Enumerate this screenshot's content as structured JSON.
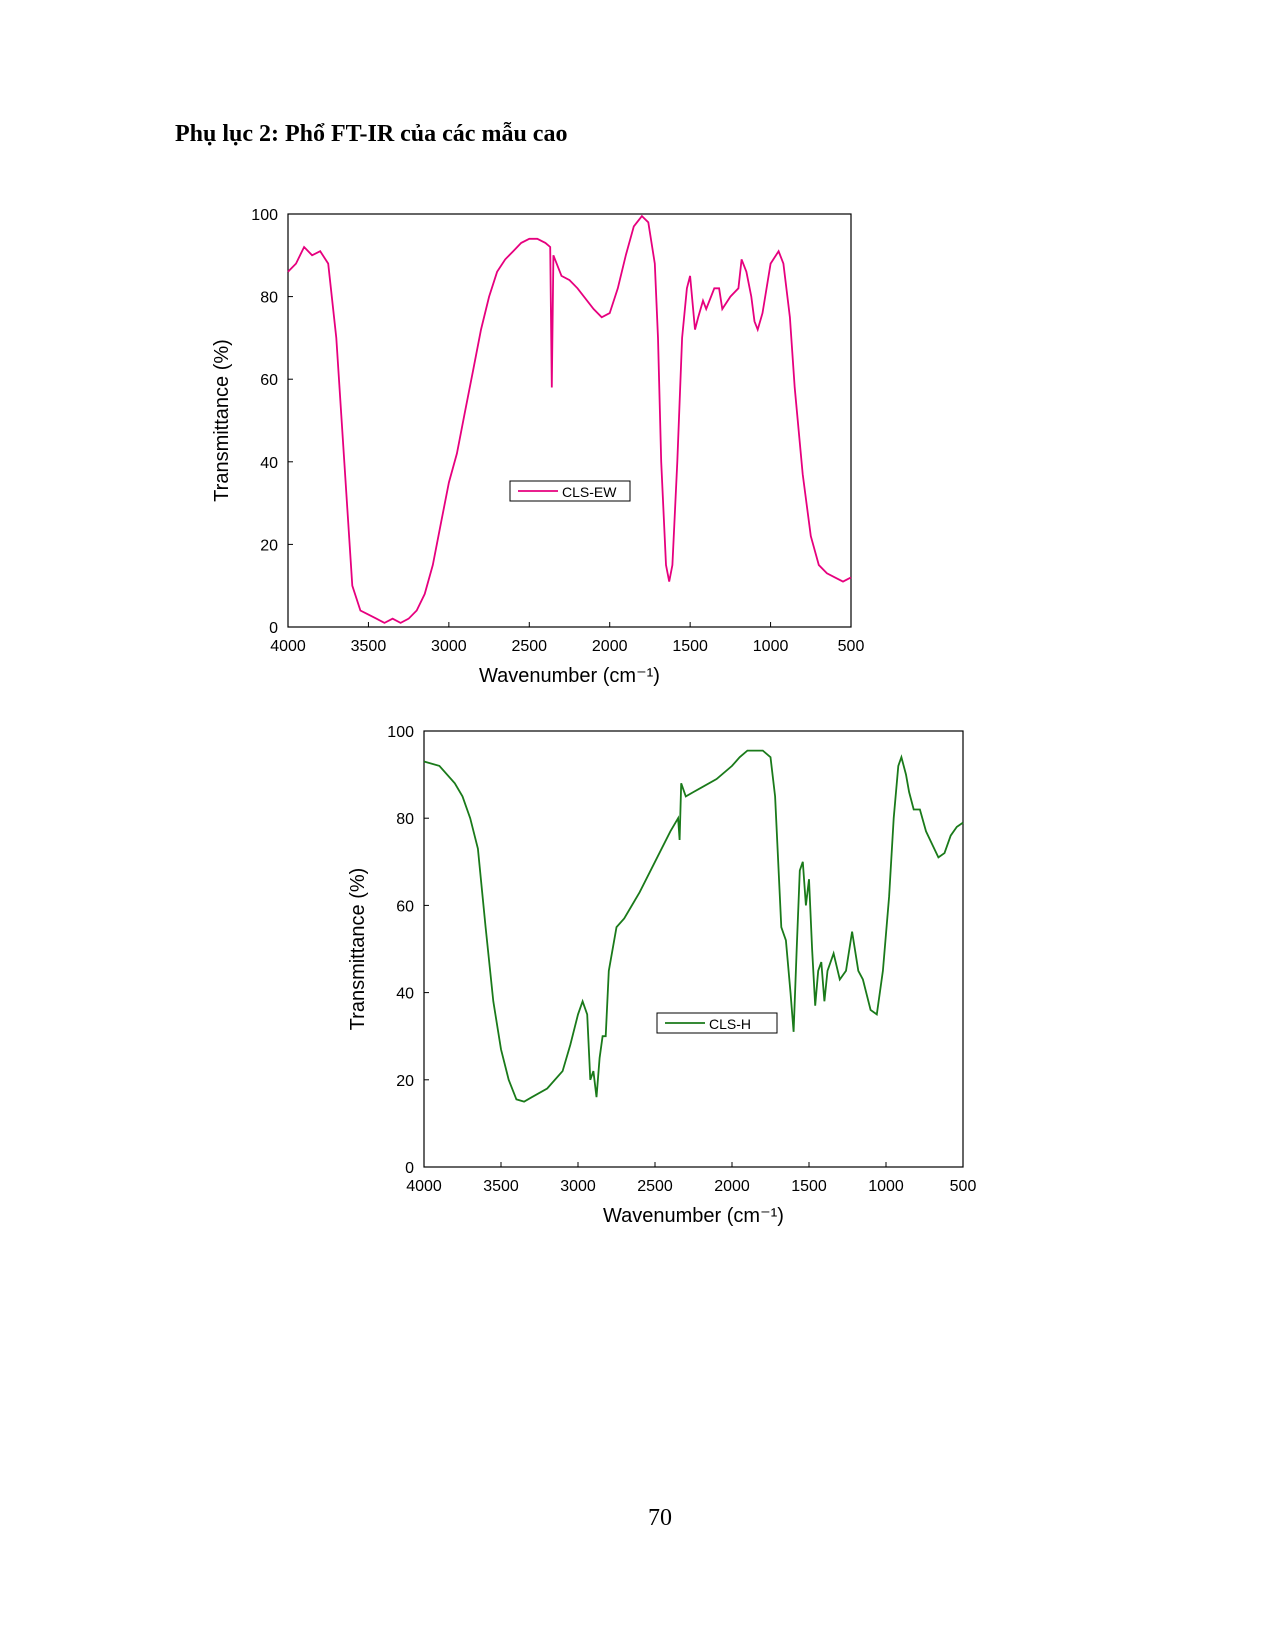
{
  "heading": "Phụ lục 2: Phổ FT-IR của các mẫu cao",
  "page_number": "70",
  "chart_data": [
    {
      "type": "line",
      "xlabel": "Wavenumber (cm⁻¹)",
      "ylabel": "Transmittance (%)",
      "xlim": [
        4000,
        500
      ],
      "ylim": [
        0,
        100
      ],
      "xticks": [
        4000,
        3500,
        3000,
        2500,
        2000,
        1500,
        1000,
        500
      ],
      "yticks": [
        0,
        20,
        40,
        60,
        80,
        100
      ],
      "x": [
        4000,
        3950,
        3900,
        3850,
        3800,
        3750,
        3700,
        3650,
        3600,
        3550,
        3500,
        3450,
        3400,
        3350,
        3300,
        3250,
        3200,
        3150,
        3100,
        3050,
        3000,
        2950,
        2900,
        2850,
        2800,
        2750,
        2700,
        2650,
        2600,
        2550,
        2500,
        2450,
        2400,
        2370,
        2360,
        2350,
        2300,
        2250,
        2200,
        2100,
        2050,
        2000,
        1950,
        1900,
        1850,
        1800,
        1760,
        1720,
        1700,
        1680,
        1650,
        1630,
        1610,
        1580,
        1550,
        1520,
        1500,
        1470,
        1450,
        1420,
        1400,
        1350,
        1320,
        1300,
        1250,
        1200,
        1180,
        1150,
        1120,
        1100,
        1080,
        1050,
        1000,
        950,
        920,
        880,
        850,
        800,
        750,
        700,
        650,
        600,
        550,
        500
      ],
      "series": [
        {
          "name": "CLS-EW",
          "color": "#e6007e",
          "values": [
            86,
            88,
            92,
            90,
            91,
            88,
            70,
            40,
            10,
            4,
            3,
            2,
            1,
            2,
            1,
            2,
            4,
            8,
            15,
            25,
            35,
            42,
            52,
            62,
            72,
            80,
            86,
            89,
            91,
            93,
            94,
            94,
            93,
            92,
            58,
            90,
            85,
            84,
            82,
            77,
            75,
            76,
            82,
            90,
            97,
            99.5,
            98,
            88,
            70,
            40,
            15,
            11,
            15,
            40,
            70,
            82,
            85,
            72,
            75,
            79,
            77,
            82,
            82,
            77,
            80,
            82,
            89,
            86,
            80,
            74,
            72,
            76,
            88,
            91,
            88,
            75,
            58,
            37,
            22,
            15,
            13,
            12,
            11,
            12
          ]
        }
      ]
    },
    {
      "type": "line",
      "xlabel": "Wavenumber (cm⁻¹)",
      "ylabel": "Transmittance (%)",
      "xlim": [
        4000,
        500
      ],
      "ylim": [
        0,
        100
      ],
      "xticks": [
        4000,
        3500,
        3000,
        2500,
        2000,
        1500,
        1000,
        500
      ],
      "yticks": [
        0,
        20,
        40,
        60,
        80,
        100
      ],
      "x": [
        4000,
        3900,
        3800,
        3750,
        3700,
        3650,
        3600,
        3550,
        3500,
        3450,
        3400,
        3350,
        3300,
        3200,
        3100,
        3050,
        3000,
        2970,
        2940,
        2920,
        2900,
        2880,
        2860,
        2840,
        2820,
        2800,
        2750,
        2700,
        2600,
        2500,
        2400,
        2350,
        2340,
        2330,
        2300,
        2250,
        2200,
        2100,
        2000,
        1950,
        1900,
        1800,
        1750,
        1720,
        1700,
        1680,
        1650,
        1620,
        1600,
        1580,
        1560,
        1540,
        1520,
        1500,
        1480,
        1460,
        1440,
        1420,
        1400,
        1380,
        1340,
        1300,
        1260,
        1220,
        1180,
        1150,
        1100,
        1060,
        1020,
        980,
        950,
        920,
        900,
        870,
        850,
        820,
        780,
        740,
        700,
        660,
        620,
        580,
        540,
        500
      ],
      "series": [
        {
          "name": "CLS-H",
          "color": "#1a7a1a",
          "values": [
            93,
            92,
            88,
            85,
            80,
            73,
            55,
            38,
            27,
            20,
            15.5,
            15,
            16,
            18,
            22,
            28,
            35,
            38,
            35,
            20,
            22,
            16,
            25,
            30,
            30,
            45,
            55,
            57,
            63,
            70,
            77,
            80,
            75,
            88,
            85,
            86,
            87,
            89,
            92,
            94,
            95.5,
            95.5,
            94,
            85,
            70,
            55,
            52,
            40,
            31,
            50,
            68,
            70,
            60,
            66,
            50,
            37,
            45,
            47,
            38,
            45,
            49,
            43,
            45,
            54,
            45,
            43,
            36,
            35,
            45,
            62,
            80,
            92,
            94,
            90,
            86,
            82,
            82,
            77,
            74,
            71,
            72,
            76,
            78,
            79
          ]
        }
      ]
    }
  ]
}
